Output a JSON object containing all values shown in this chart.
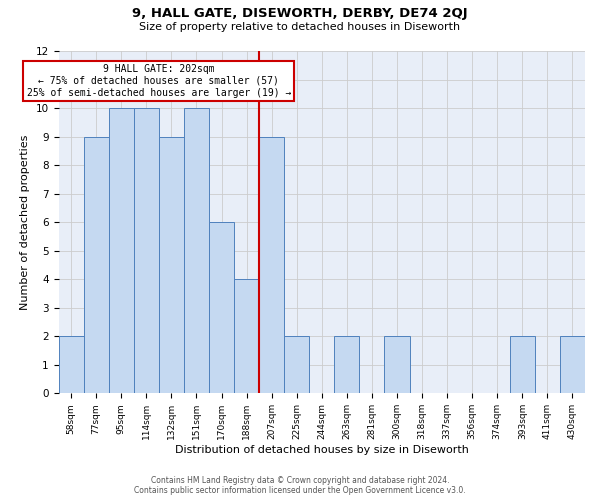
{
  "title": "9, HALL GATE, DISEWORTH, DERBY, DE74 2QJ",
  "subtitle": "Size of property relative to detached houses in Diseworth",
  "xlabel": "Distribution of detached houses by size in Diseworth",
  "ylabel": "Number of detached properties",
  "categories": [
    "58sqm",
    "77sqm",
    "95sqm",
    "114sqm",
    "132sqm",
    "151sqm",
    "170sqm",
    "188sqm",
    "207sqm",
    "225sqm",
    "244sqm",
    "263sqm",
    "281sqm",
    "300sqm",
    "318sqm",
    "337sqm",
    "356sqm",
    "374sqm",
    "393sqm",
    "411sqm",
    "430sqm"
  ],
  "values": [
    2,
    9,
    10,
    10,
    9,
    10,
    6,
    4,
    9,
    2,
    0,
    2,
    0,
    2,
    0,
    0,
    0,
    0,
    2,
    0,
    2
  ],
  "bar_color": "#c5d9f1",
  "bar_edge_color": "#4f81bd",
  "highlight_index": 8,
  "vline_color": "#cc0000",
  "annotation_line1": "9 HALL GATE: 202sqm",
  "annotation_line2": "← 75% of detached houses are smaller (57)",
  "annotation_line3": "25% of semi-detached houses are larger (19) →",
  "annotation_box_color": "#cc0000",
  "ylim": [
    0,
    12
  ],
  "yticks": [
    0,
    1,
    2,
    3,
    4,
    5,
    6,
    7,
    8,
    9,
    10,
    11,
    12
  ],
  "grid_color": "#cccccc",
  "background_color": "#e8eef8",
  "footer_line1": "Contains HM Land Registry data © Crown copyright and database right 2024.",
  "footer_line2": "Contains public sector information licensed under the Open Government Licence v3.0."
}
